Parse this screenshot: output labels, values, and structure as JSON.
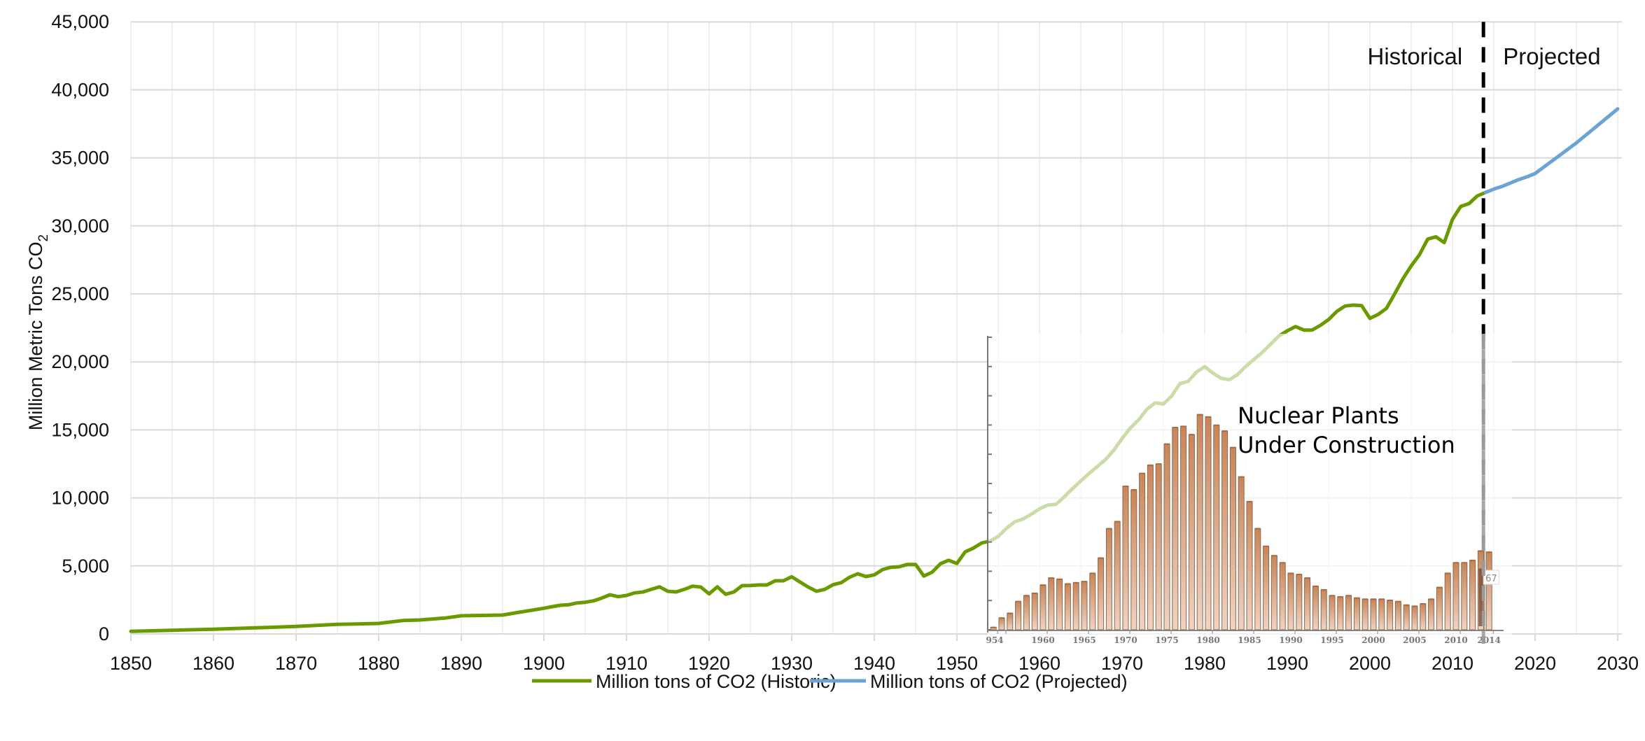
{
  "chart_data": [
    {
      "type": "line",
      "title": "",
      "xlabel": "",
      "ylabel": "Million Metric Tons CO",
      "ylabel_subscript": "2",
      "xlim": [
        1850,
        2030
      ],
      "ylim": [
        0,
        45000
      ],
      "xticks": [
        1850,
        1860,
        1870,
        1880,
        1890,
        1900,
        1910,
        1920,
        1930,
        1940,
        1950,
        1960,
        1970,
        1980,
        1990,
        2000,
        2010,
        2020,
        2030
      ],
      "yticks": [
        0,
        5000,
        10000,
        15000,
        20000,
        25000,
        30000,
        35000,
        40000,
        45000
      ],
      "ytick_labels": [
        "0",
        "5,000",
        "10,000",
        "15,000",
        "20,000",
        "25,000",
        "30,000",
        "35,000",
        "40,000",
        "45,000"
      ],
      "grid": true,
      "legend_placement": "bottom",
      "divider": {
        "x": 2014,
        "style": "dashed",
        "left_label": "Historical",
        "right_label": "Projected"
      },
      "series": [
        {
          "name": "Million tons of CO2 (Historic)",
          "color": "#6a9a00",
          "x": [
            1850,
            1855,
            1860,
            1865,
            1870,
            1875,
            1880,
            1883,
            1885,
            1888,
            1890,
            1895,
            1897,
            1900,
            1901,
            1902,
            1903,
            1904,
            1905,
            1906,
            1907,
            1908,
            1909,
            1910,
            1911,
            1912,
            1913,
            1914,
            1915,
            1916,
            1917,
            1918,
            1919,
            1920,
            1921,
            1922,
            1923,
            1924,
            1925,
            1926,
            1927,
            1928,
            1929,
            1930,
            1931,
            1932,
            1933,
            1934,
            1935,
            1936,
            1937,
            1938,
            1939,
            1940,
            1941,
            1942,
            1943,
            1944,
            1945,
            1946,
            1947,
            1948,
            1949,
            1950,
            1951,
            1952,
            1953,
            1954,
            1955,
            1956,
            1957,
            1958,
            1959,
            1960,
            1961,
            1962,
            1963,
            1964,
            1965,
            1966,
            1967,
            1968,
            1969,
            1970,
            1971,
            1972,
            1973,
            1974,
            1975,
            1976,
            1977,
            1978,
            1979,
            1980,
            1981,
            1982,
            1983,
            1984,
            1985,
            1986,
            1987,
            1988,
            1989,
            1990,
            1991,
            1992,
            1993,
            1994,
            1995,
            1996,
            1997,
            1998,
            1999,
            2000,
            2001,
            2002,
            2003,
            2004,
            2005,
            2006,
            2007,
            2008,
            2009,
            2010,
            2011,
            2012,
            2013,
            2014
          ],
          "y": [
            190,
            275,
            343,
            446,
            549,
            703,
            772,
            995,
            1029,
            1166,
            1337,
            1389,
            1595,
            1890,
            2006,
            2109,
            2143,
            2280,
            2332,
            2435,
            2640,
            2880,
            2743,
            2829,
            3018,
            3086,
            3275,
            3464,
            3138,
            3086,
            3275,
            3515,
            3447,
            2949,
            3464,
            2915,
            3086,
            3549,
            3567,
            3601,
            3601,
            3909,
            3909,
            4201,
            3824,
            3447,
            3138,
            3275,
            3618,
            3773,
            4167,
            4424,
            4218,
            4339,
            4733,
            4904,
            4938,
            5110,
            5110,
            4252,
            4544,
            5162,
            5419,
            5179,
            6036,
            6310,
            6687,
            6825,
            7168,
            7768,
            8248,
            8454,
            8797,
            9192,
            9483,
            9534,
            10082,
            10682,
            11248,
            11797,
            12311,
            12826,
            13511,
            14369,
            15140,
            15741,
            16512,
            16992,
            16906,
            17490,
            18400,
            18570,
            19255,
            19650,
            19170,
            18793,
            18690,
            19084,
            19685,
            20200,
            20715,
            21310,
            21913,
            22290,
            22600,
            22343,
            22343,
            22685,
            23114,
            23714,
            24110,
            24177,
            24143,
            23200,
            23490,
            23936,
            25000,
            26115,
            27057,
            27880,
            29030,
            29200,
            28772,
            30486,
            31430,
            31636,
            32201,
            32458
          ]
        },
        {
          "name": "Million tons of CO2 (Projected)",
          "color": "#6ba3d6",
          "x": [
            2014,
            2015,
            2016,
            2017,
            2018,
            2019,
            2020,
            2021,
            2022,
            2023,
            2024,
            2025,
            2026,
            2027,
            2028,
            2029,
            2030
          ],
          "y": [
            32458,
            32700,
            32900,
            33150,
            33400,
            33600,
            33850,
            34300,
            34750,
            35200,
            35650,
            36100,
            36600,
            37100,
            37600,
            38100,
            38600
          ]
        }
      ]
    },
    {
      "type": "bar",
      "title": "",
      "annotation": [
        "Nuclear Plants",
        "Under Construction"
      ],
      "categories": [
        1954,
        1955,
        1956,
        1957,
        1958,
        1959,
        1960,
        1961,
        1962,
        1963,
        1964,
        1965,
        1966,
        1967,
        1968,
        1969,
        1970,
        1971,
        1972,
        1973,
        1974,
        1975,
        1976,
        1977,
        1978,
        1979,
        1980,
        1981,
        1982,
        1983,
        1984,
        1985,
        1986,
        1987,
        1988,
        1989,
        1990,
        1991,
        1992,
        1993,
        1994,
        1995,
        1996,
        1997,
        1998,
        1999,
        2000,
        2001,
        2002,
        2003,
        2004,
        2005,
        2006,
        2007,
        2008,
        2009,
        2010,
        2011,
        2012,
        2013,
        2014
      ],
      "values": [
        2,
        10,
        14,
        24,
        29,
        31,
        38,
        44,
        43,
        39,
        40,
        41,
        48,
        61,
        86,
        92,
        122,
        119,
        133,
        140,
        141,
        158,
        172,
        173,
        166,
        183,
        181,
        174,
        169,
        155,
        130,
        109,
        86,
        71,
        63,
        57,
        48,
        47,
        44,
        37,
        34,
        29,
        28,
        29,
        27,
        26,
        26,
        26,
        25,
        24,
        21,
        20,
        22,
        26,
        36,
        48,
        57,
        57,
        59,
        67,
        66
      ],
      "xtick_labels": [
        "954",
        "1960",
        "1965",
        "1970",
        "1975",
        "1980",
        "1985",
        "1990",
        "1995",
        "2000",
        "2005",
        "2010",
        "2014"
      ],
      "highlighted": {
        "category": 2013,
        "label": "67"
      },
      "bar_color": "#c98a5c"
    }
  ]
}
